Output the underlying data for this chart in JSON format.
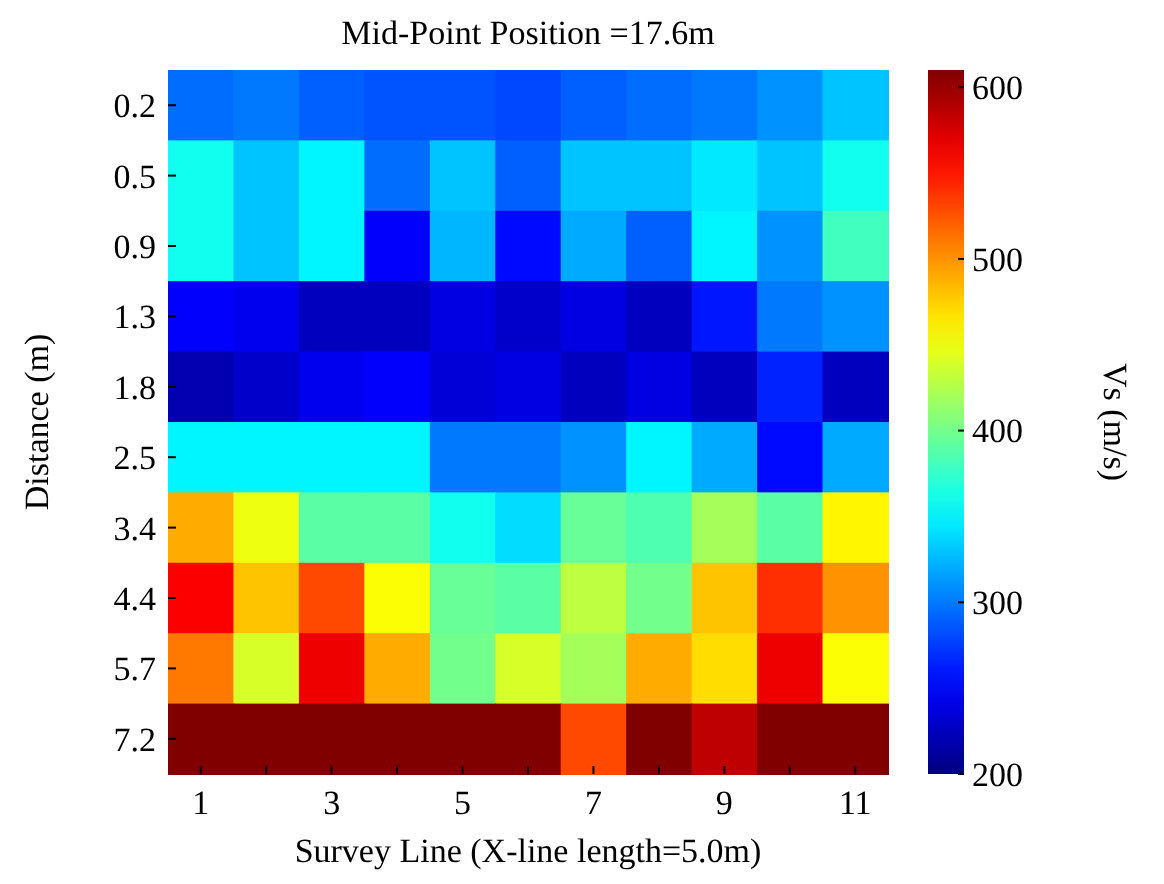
{
  "chart_data": {
    "type": "heatmap",
    "title": "Mid-Point Position =17.6m",
    "xlabel": "Survey Line (X-line length=5.0m)",
    "ylabel": "Distance (m)",
    "clabel": "Vs (m/s)",
    "categories": [
      "1",
      null,
      "3",
      null,
      "5",
      null,
      "7",
      null,
      "9",
      null,
      "11"
    ],
    "y_categories": [
      "0.2",
      "0.5",
      "0.9",
      "1.3",
      "1.8",
      "2.5",
      "3.4",
      "4.4",
      "5.7",
      "7.2"
    ],
    "cells": [
      [
        295,
        300,
        290,
        285,
        285,
        280,
        290,
        295,
        300,
        310,
        330
      ],
      [
        360,
        330,
        350,
        295,
        330,
        290,
        330,
        330,
        345,
        330,
        360
      ],
      [
        360,
        330,
        350,
        250,
        325,
        255,
        320,
        290,
        350,
        310,
        380
      ],
      [
        250,
        245,
        225,
        225,
        240,
        230,
        240,
        225,
        260,
        300,
        310
      ],
      [
        220,
        230,
        245,
        250,
        235,
        240,
        225,
        240,
        225,
        265,
        225
      ],
      [
        350,
        350,
        350,
        350,
        300,
        300,
        310,
        350,
        320,
        255,
        320
      ],
      [
        490,
        450,
        390,
        390,
        360,
        340,
        395,
        385,
        420,
        390,
        460
      ],
      [
        560,
        480,
        530,
        455,
        395,
        390,
        430,
        400,
        480,
        540,
        500
      ],
      [
        510,
        440,
        565,
        490,
        400,
        440,
        420,
        490,
        470,
        565,
        455
      ],
      [
        610,
        610,
        610,
        610,
        610,
        610,
        530,
        610,
        585,
        610,
        610
      ]
    ],
    "clim": [
      200,
      610
    ],
    "cticks": [
      200,
      300,
      400,
      500,
      600
    ]
  }
}
